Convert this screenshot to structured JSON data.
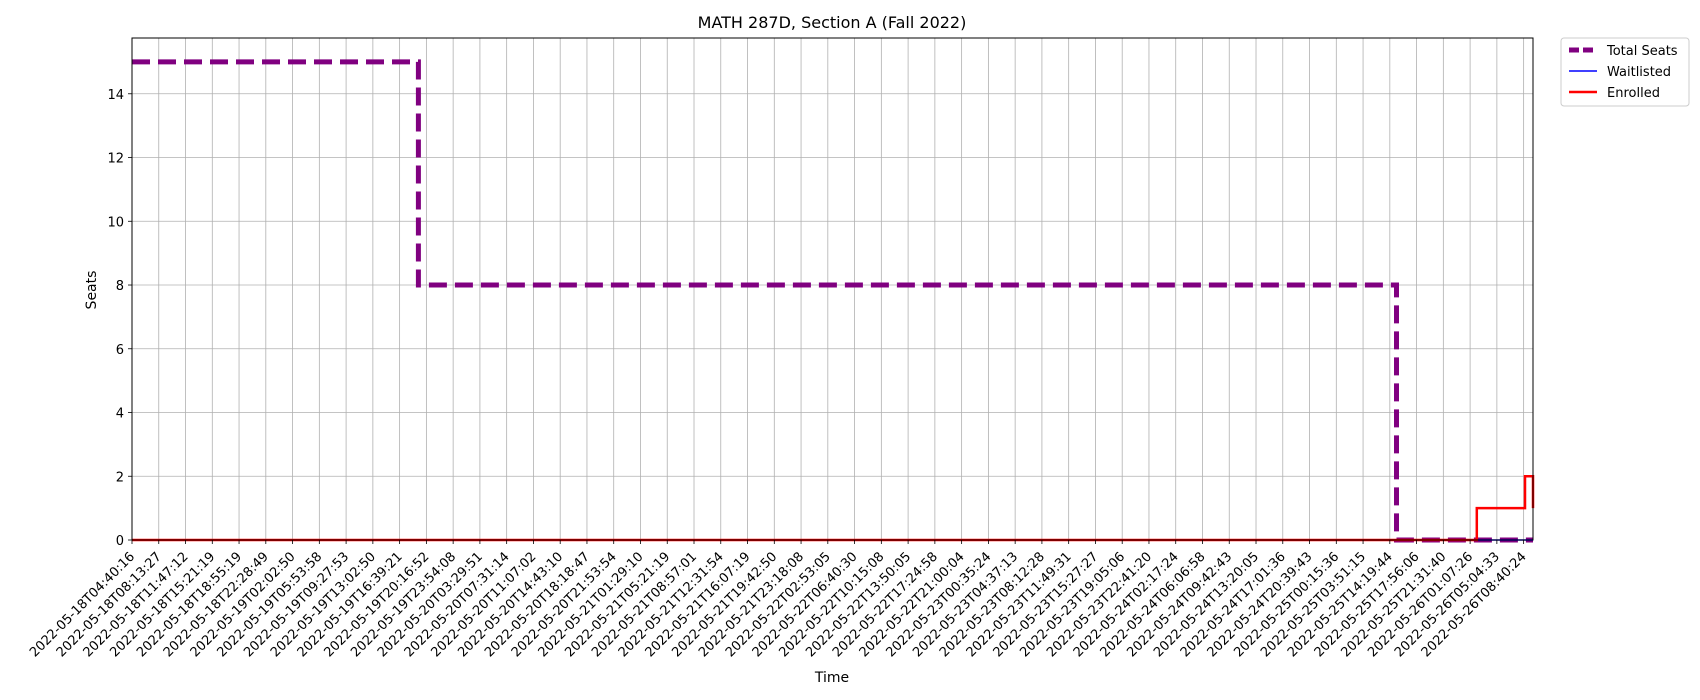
{
  "chart_data": {
    "type": "line",
    "title": "MATH 287D, Section A (Fall 2022)",
    "xlabel": "Time",
    "ylabel": "Seats",
    "ylim": [
      0,
      15.75
    ],
    "yticks": [
      0,
      2,
      4,
      6,
      8,
      10,
      12,
      14
    ],
    "grid": true,
    "legend_placement": "outside-top-right",
    "categories": [
      "2022-05-18T04:40:16",
      "2022-05-18T08:13:27",
      "2022-05-18T11:47:12",
      "2022-05-18T15:21:19",
      "2022-05-18T18:55:19",
      "2022-05-18T22:28:49",
      "2022-05-19T02:02:50",
      "2022-05-19T05:53:58",
      "2022-05-19T09:27:53",
      "2022-05-19T13:02:50",
      "2022-05-19T16:39:21",
      "2022-05-19T20:16:52",
      "2022-05-19T23:54:08",
      "2022-05-20T03:29:51",
      "2022-05-20T07:31:14",
      "2022-05-20T11:07:02",
      "2022-05-20T14:43:10",
      "2022-05-20T18:18:47",
      "2022-05-20T21:53:54",
      "2022-05-21T01:29:10",
      "2022-05-21T05:21:19",
      "2022-05-21T08:57:01",
      "2022-05-21T12:31:54",
      "2022-05-21T16:07:19",
      "2022-05-21T19:42:50",
      "2022-05-21T23:18:08",
      "2022-05-22T02:53:05",
      "2022-05-22T06:40:30",
      "2022-05-22T10:15:08",
      "2022-05-22T13:50:05",
      "2022-05-22T17:24:58",
      "2022-05-22T21:00:04",
      "2022-05-23T00:35:24",
      "2022-05-23T04:37:13",
      "2022-05-23T08:12:28",
      "2022-05-23T11:49:31",
      "2022-05-23T15:27:27",
      "2022-05-23T19:05:06",
      "2022-05-23T22:41:20",
      "2022-05-24T02:17:24",
      "2022-05-24T06:06:58",
      "2022-05-24T09:42:43",
      "2022-05-24T13:20:05",
      "2022-05-24T17:01:36",
      "2022-05-24T20:39:43",
      "2022-05-25T00:15:36",
      "2022-05-25T03:51:15",
      "2022-05-25T14:19:44",
      "2022-05-25T17:56:06",
      "2022-05-25T21:31:40",
      "2022-05-26T01:07:26",
      "2022-05-26T05:04:33",
      "2022-05-26T08:40:24"
    ],
    "series": [
      {
        "name": "Total Seats",
        "color": "#800080",
        "style": "dashed",
        "steps": [
          [
            0,
            15
          ],
          [
            10.7,
            15
          ],
          [
            10.7,
            8
          ],
          [
            47.25,
            8
          ],
          [
            47.25,
            0
          ],
          [
            52.35,
            0
          ]
        ]
      },
      {
        "name": "Waitlisted",
        "color": "#0000ff",
        "style": "solid",
        "steps": [
          [
            0,
            0
          ],
          [
            52.35,
            0
          ]
        ]
      },
      {
        "name": "Enrolled",
        "color": "#ff0000",
        "style": "solid",
        "steps": [
          [
            0,
            0
          ],
          [
            50.25,
            0
          ],
          [
            50.25,
            1
          ],
          [
            52.05,
            1
          ],
          [
            52.05,
            2
          ],
          [
            52.35,
            2
          ],
          [
            52.35,
            1
          ]
        ]
      }
    ]
  }
}
